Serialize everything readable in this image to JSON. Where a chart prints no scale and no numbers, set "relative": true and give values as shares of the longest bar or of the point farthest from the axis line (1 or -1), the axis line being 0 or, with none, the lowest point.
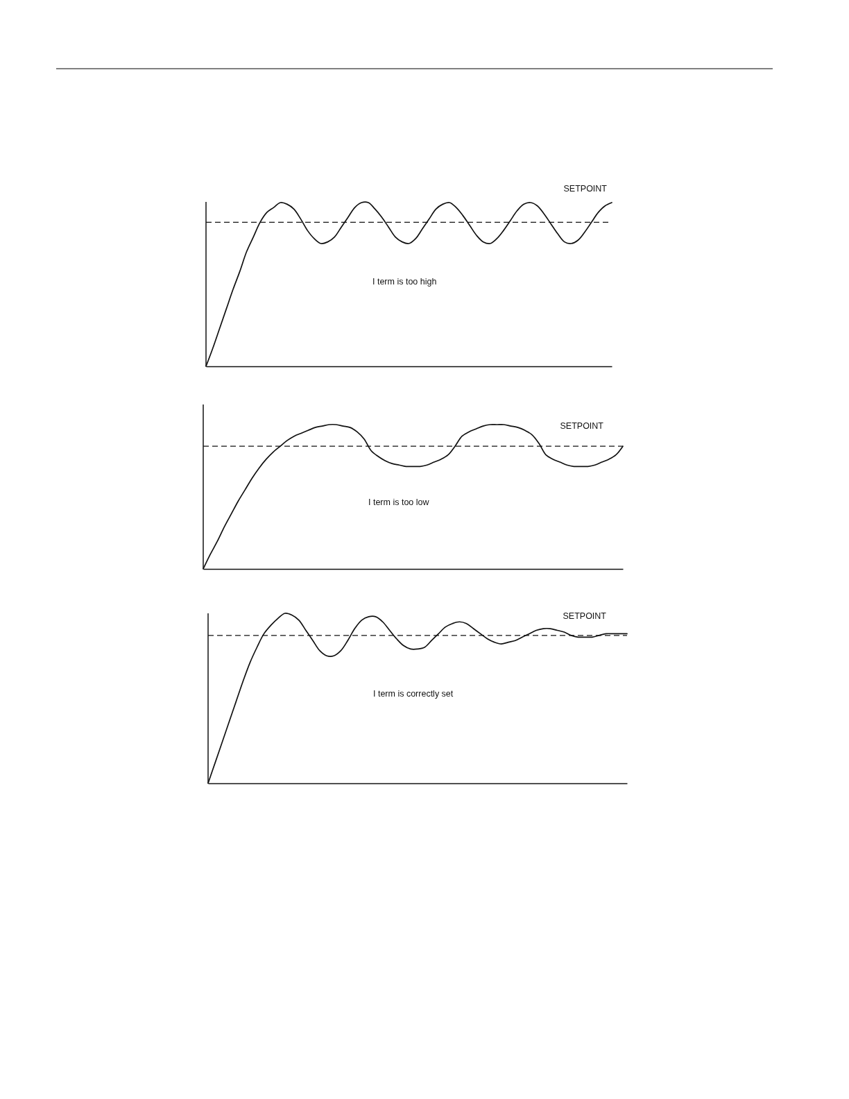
{
  "chart_data": [
    {
      "type": "line",
      "relative": true,
      "tick_labels": false,
      "color": "#111111",
      "categories": [
        null,
        null,
        null,
        null,
        null,
        null,
        null,
        null,
        null,
        null,
        null,
        null,
        null,
        null,
        null,
        null,
        null,
        null,
        null,
        null,
        null,
        null,
        null,
        null,
        null,
        null,
        null,
        null,
        null,
        null,
        null,
        null,
        null,
        null,
        null,
        null,
        null,
        null,
        null,
        null,
        null,
        null,
        null,
        null,
        null,
        null,
        null,
        null,
        null,
        null,
        null,
        null,
        null,
        null,
        null,
        null,
        null,
        null,
        null,
        null,
        null
      ],
      "values": [
        0,
        0.11,
        0.23,
        0.35,
        0.47,
        0.58,
        0.7,
        0.79,
        0.88,
        0.94,
        0.97,
        1,
        0.99,
        0.96,
        0.9,
        0.83,
        0.78,
        0.75,
        0.76,
        0.79,
        0.85,
        0.91,
        0.97,
        1,
        1,
        0.96,
        0.91,
        0.85,
        0.79,
        0.76,
        0.75,
        0.78,
        0.84,
        0.9,
        0.96,
        0.99,
        1,
        0.97,
        0.92,
        0.86,
        0.8,
        0.76,
        0.75,
        0.78,
        0.83,
        0.89,
        0.95,
        0.99,
        1,
        0.98,
        0.93,
        0.87,
        0.81,
        0.76,
        0.75,
        0.77,
        0.82,
        0.88,
        0.94,
        0.98,
        1
      ],
      "ref_lines": [
        {
          "axis": "y",
          "value": 0.88,
          "label": "SETPOINT",
          "color": "#111111",
          "line_style": "dashed"
        }
      ],
      "annotations": [
        "I term is too high"
      ]
    },
    {
      "type": "line",
      "relative": true,
      "tick_labels": false,
      "color": "#111111",
      "categories": [
        null,
        null,
        null,
        null,
        null,
        null,
        null,
        null,
        null,
        null,
        null,
        null,
        null,
        null,
        null,
        null,
        null,
        null,
        null,
        null,
        null,
        null,
        null,
        null,
        null,
        null,
        null,
        null,
        null,
        null,
        null,
        null,
        null,
        null,
        null,
        null,
        null,
        null,
        null,
        null,
        null,
        null,
        null,
        null,
        null,
        null,
        null,
        null,
        null,
        null,
        null,
        null,
        null,
        null,
        null,
        null,
        null,
        null,
        null,
        null,
        null
      ],
      "values": [
        0,
        0.1,
        0.19,
        0.29,
        0.38,
        0.47,
        0.55,
        0.63,
        0.7,
        0.76,
        0.81,
        0.85,
        0.89,
        0.92,
        0.94,
        0.96,
        0.98,
        0.99,
        1,
        1,
        0.99,
        0.98,
        0.95,
        0.9,
        0.82,
        0.78,
        0.75,
        0.73,
        0.72,
        0.71,
        0.71,
        0.71,
        0.72,
        0.74,
        0.76,
        0.79,
        0.85,
        0.92,
        0.95,
        0.97,
        0.99,
        1,
        1,
        1,
        0.99,
        0.98,
        0.96,
        0.93,
        0.87,
        0.79,
        0.76,
        0.74,
        0.72,
        0.71,
        0.71,
        0.71,
        0.72,
        0.74,
        0.76,
        0.79,
        0.85
      ],
      "ref_lines": [
        {
          "axis": "y",
          "value": 0.85,
          "label": "SETPOINT",
          "color": "#111111",
          "line_style": "dashed"
        }
      ],
      "annotations": [
        "I term is too low"
      ]
    },
    {
      "type": "line",
      "relative": true,
      "tick_labels": false,
      "color": "#111111",
      "categories": [
        null,
        null,
        null,
        null,
        null,
        null,
        null,
        null,
        null,
        null,
        null,
        null,
        null,
        null,
        null,
        null,
        null,
        null,
        null,
        null,
        null,
        null,
        null,
        null,
        null,
        null,
        null,
        null,
        null,
        null,
        null,
        null,
        null,
        null,
        null,
        null,
        null,
        null,
        null,
        null,
        null,
        null,
        null,
        null,
        null,
        null,
        null,
        null,
        null,
        null,
        null,
        null,
        null,
        null,
        null,
        null,
        null,
        null,
        null,
        null,
        null
      ],
      "values": [
        0,
        0.12,
        0.24,
        0.36,
        0.48,
        0.6,
        0.71,
        0.8,
        0.88,
        0.93,
        0.97,
        1,
        0.99,
        0.96,
        0.9,
        0.84,
        0.78,
        0.75,
        0.75,
        0.78,
        0.84,
        0.91,
        0.96,
        0.98,
        0.98,
        0.95,
        0.9,
        0.85,
        0.81,
        0.79,
        0.79,
        0.8,
        0.84,
        0.88,
        0.92,
        0.94,
        0.95,
        0.94,
        0.91,
        0.88,
        0.85,
        0.83,
        0.82,
        0.83,
        0.84,
        0.86,
        0.88,
        0.9,
        0.91,
        0.91,
        0.9,
        0.89,
        0.87,
        0.86,
        0.86,
        0.86,
        0.87,
        0.88,
        0.88,
        0.88,
        0.88
      ],
      "ref_lines": [
        {
          "axis": "y",
          "value": 0.87,
          "label": "SETPOINT",
          "color": "#111111",
          "line_style": "dashed"
        }
      ],
      "annotations": [
        "I term is correctly set"
      ]
    }
  ]
}
